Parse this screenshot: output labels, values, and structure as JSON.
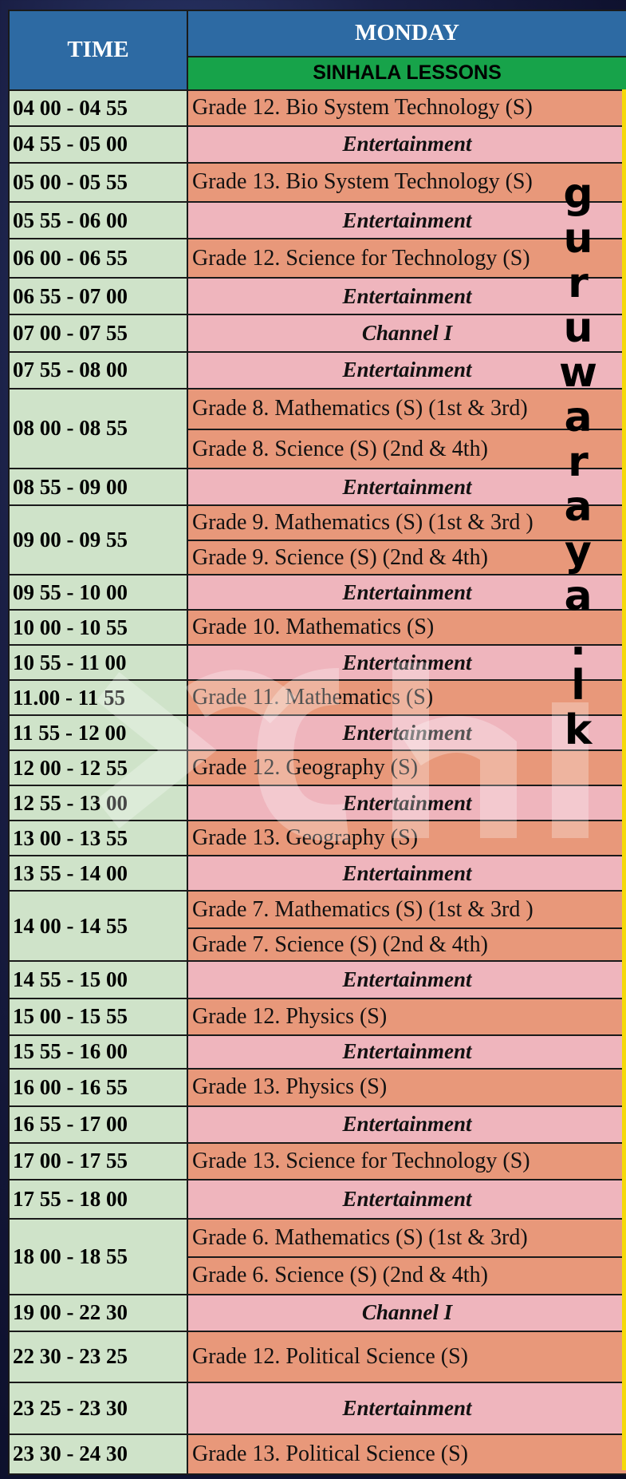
{
  "header": {
    "time_label": "TIME",
    "day_label": "MONDAY",
    "subheading": "SINHALA LESSONS"
  },
  "rows": [
    {
      "time": "04 00 - 04 55",
      "entries": [
        {
          "text": "Grade 12. Bio System Technology (S)",
          "kind": "lesson"
        }
      ]
    },
    {
      "time": "04 55 - 05 00",
      "entries": [
        {
          "text": "Entertainment",
          "kind": "entertainment"
        }
      ]
    },
    {
      "time": "05 00 - 05 55",
      "entries": [
        {
          "text": "Grade 13. Bio System Technology (S)",
          "kind": "lesson"
        }
      ]
    },
    {
      "time": "05 55 - 06 00",
      "entries": [
        {
          "text": "Entertainment",
          "kind": "entertainment"
        }
      ]
    },
    {
      "time": "06 00 -  06 55",
      "entries": [
        {
          "text": "Grade 12. Science for Technology (S)",
          "kind": "lesson"
        }
      ]
    },
    {
      "time": "06 55 - 07 00",
      "entries": [
        {
          "text": "Entertainment",
          "kind": "entertainment"
        }
      ]
    },
    {
      "time": "07 00 - 07 55",
      "entries": [
        {
          "text": "Channel I",
          "kind": "entertainment"
        }
      ]
    },
    {
      "time": "07 55 - 08 00",
      "entries": [
        {
          "text": "Entertainment",
          "kind": "entertainment"
        }
      ]
    },
    {
      "time": "08 00 - 08 55",
      "entries": [
        {
          "text": "Grade 8. Mathematics (S) (1st & 3rd)",
          "kind": "lesson"
        },
        {
          "text": "Grade 8. Science (S) (2nd & 4th)",
          "kind": "lesson"
        }
      ]
    },
    {
      "time": "08 55 - 09 00",
      "entries": [
        {
          "text": "Entertainment",
          "kind": "entertainment"
        }
      ]
    },
    {
      "time": "09 00 - 09 55",
      "entries": [
        {
          "text": "Grade 9. Mathematics (S) (1st & 3rd )",
          "kind": "lesson"
        },
        {
          "text": "Grade 9. Science (S) (2nd & 4th)",
          "kind": "lesson"
        }
      ]
    },
    {
      "time": "09 55 - 10 00",
      "entries": [
        {
          "text": "Entertainment",
          "kind": "entertainment"
        }
      ]
    },
    {
      "time": "10 00  - 10 55",
      "entries": [
        {
          "text": "Grade 10. Mathematics (S)",
          "kind": "lesson"
        }
      ]
    },
    {
      "time": "10 55 - 11 00",
      "entries": [
        {
          "text": "Entertainment",
          "kind": "entertainment"
        }
      ]
    },
    {
      "time": "11.00 - 11 55",
      "entries": [
        {
          "text": "Grade 11. Mathematics (S)",
          "kind": "lesson"
        }
      ]
    },
    {
      "time": "11 55 - 12 00",
      "entries": [
        {
          "text": "Entertainment",
          "kind": "entertainment"
        }
      ]
    },
    {
      "time": "12 00 - 12 55",
      "entries": [
        {
          "text": "Grade 12. Geography (S)",
          "kind": "lesson"
        }
      ]
    },
    {
      "time": "12 55 - 13 00",
      "entries": [
        {
          "text": "Entertainment",
          "kind": "entertainment"
        }
      ]
    },
    {
      "time": "13 00 - 13 55",
      "entries": [
        {
          "text": "Grade 13. Geography (S)",
          "kind": "lesson"
        }
      ]
    },
    {
      "time": "13 55 - 14 00",
      "entries": [
        {
          "text": "Entertainment",
          "kind": "entertainment"
        }
      ]
    },
    {
      "time": "14 00 - 14 55",
      "entries": [
        {
          "text": "Grade 7. Mathematics (S) (1st & 3rd )",
          "kind": "lesson"
        },
        {
          "text": "Grade 7. Science (S) (2nd & 4th)",
          "kind": "lesson"
        }
      ]
    },
    {
      "time": "14 55 - 15 00",
      "entries": [
        {
          "text": "Entertainment",
          "kind": "entertainment"
        }
      ]
    },
    {
      "time": "15 00 - 15 55",
      "entries": [
        {
          "text": "Grade 12. Physics (S)",
          "kind": "lesson"
        }
      ]
    },
    {
      "time": "15 55 - 16 00",
      "entries": [
        {
          "text": "Entertainment",
          "kind": "entertainment"
        }
      ]
    },
    {
      "time": "16 00 - 16 55",
      "entries": [
        {
          "text": "Grade 13. Physics (S)",
          "kind": "lesson"
        }
      ]
    },
    {
      "time": "16 55 - 17 00",
      "entries": [
        {
          "text": "Entertainment",
          "kind": "entertainment"
        }
      ]
    },
    {
      "time": "17 00 - 17 55",
      "entries": [
        {
          "text": "Grade 13. Science for Technology (S)",
          "kind": "lesson"
        }
      ]
    },
    {
      "time": "17 55 - 18 00",
      "entries": [
        {
          "text": "Entertainment",
          "kind": "entertainment"
        }
      ]
    },
    {
      "time": "18 00 - 18 55",
      "entries": [
        {
          "text": "Grade 6. Mathematics (S) (1st & 3rd)",
          "kind": "lesson"
        },
        {
          "text": "Grade 6. Science (S) (2nd & 4th)",
          "kind": "lesson"
        }
      ]
    },
    {
      "time": "19 00 - 22 30",
      "entries": [
        {
          "text": "Channel I",
          "kind": "entertainment"
        }
      ]
    },
    {
      "time": "22 30 - 23 25",
      "entries": [
        {
          "text": "Grade 12. Political Science (S)",
          "kind": "lesson"
        }
      ]
    },
    {
      "time": "23 25 - 23 30",
      "entries": [
        {
          "text": "Entertainment",
          "kind": "entertainment"
        }
      ]
    },
    {
      "time": "23 30 - 24 30",
      "entries": [
        {
          "text": "Grade 13. Political Science (S)",
          "kind": "lesson"
        }
      ]
    }
  ],
  "watermark": {
    "letters": [
      "g",
      "u",
      "r",
      "u",
      "w",
      "a",
      "r",
      "a",
      "y",
      "a",
      ".",
      "l",
      "k"
    ]
  },
  "colors": {
    "header_blue": "#2d6aa3",
    "subheader_green": "#17a34a",
    "time_green": "#cfe3c9",
    "lesson_orange": "#e8987a",
    "entertainment_pink": "#efb5bd",
    "accent_yellow": "#f5d90a"
  }
}
